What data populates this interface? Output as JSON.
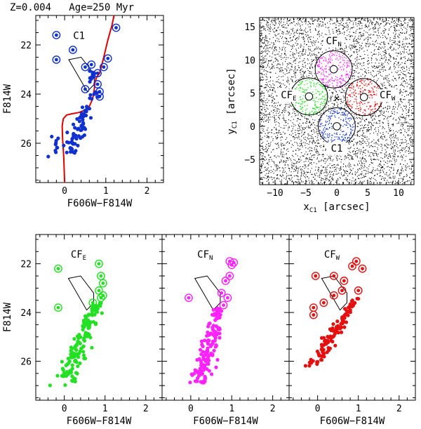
{
  "title": "Z=0.004   Age=250 Myr",
  "colors": {
    "C1": "#1030d0",
    "CF_E": "#22e022",
    "CF_N": "#ff22ff",
    "CF_W": "#e41010",
    "isochrone": "#e00000",
    "box": "#000000"
  },
  "chart_data": [
    {
      "id": "cmd_C1",
      "type": "scatter",
      "label": "C1",
      "xlabel": "F606W−F814W",
      "ylabel": "F814W",
      "xlim": [
        -0.7,
        2.4
      ],
      "ylim": [
        27.6,
        20.8
      ],
      "xticks": [
        "0",
        "1",
        "2"
      ],
      "yticks": [
        "22",
        "24",
        "26"
      ],
      "color_key": "C1",
      "circled": [
        [
          -0.2,
          21.6
        ],
        [
          0.2,
          22.2
        ],
        [
          -0.2,
          22.6
        ],
        [
          0.5,
          22.9
        ],
        [
          0.65,
          22.8
        ],
        [
          0.95,
          22.9
        ],
        [
          0.8,
          23.15
        ],
        [
          0.8,
          23.6
        ],
        [
          0.5,
          23.8
        ],
        [
          0.85,
          23.9
        ],
        [
          0.85,
          24.1
        ],
        [
          1.25,
          21.3
        ],
        [
          1.05,
          22.55
        ]
      ]
    },
    {
      "id": "cmd_CFE",
      "type": "scatter",
      "label": "CF",
      "label_sub": "E",
      "xlabel": "F606W−F814W",
      "ylabel": "F814W",
      "xlim": [
        -0.7,
        2.4
      ],
      "ylim": [
        27.6,
        20.8
      ],
      "xticks": [
        "0",
        "1",
        "2"
      ],
      "yticks": [
        "22",
        "24",
        "26"
      ],
      "color_key": "CF_E",
      "circled": [
        [
          -0.15,
          22.2
        ],
        [
          0.85,
          22.0
        ],
        [
          0.9,
          22.5
        ],
        [
          0.95,
          22.8
        ],
        [
          0.85,
          23.1
        ],
        [
          0.9,
          23.4
        ],
        [
          0.7,
          23.6
        ],
        [
          -0.15,
          23.8
        ],
        [
          0.95,
          23.3
        ]
      ]
    },
    {
      "id": "cmd_CFN",
      "type": "scatter",
      "label": "CF",
      "label_sub": "N",
      "xlabel": "F606W−F814W",
      "ylabel": "F814W",
      "xlim": [
        -0.7,
        2.4
      ],
      "ylim": [
        27.6,
        20.8
      ],
      "xticks": [
        "0",
        "1",
        "2"
      ],
      "yticks": [
        "22",
        "24",
        "26"
      ],
      "color_key": "CF_N",
      "circled": [
        [
          0.95,
          21.9
        ],
        [
          1.05,
          21.95
        ],
        [
          1.0,
          22.05
        ],
        [
          0.95,
          22.5
        ],
        [
          0.85,
          22.7
        ],
        [
          0.75,
          23.2
        ],
        [
          0.9,
          23.4
        ],
        [
          -0.05,
          23.4
        ],
        [
          0.8,
          23.7
        ]
      ]
    },
    {
      "id": "cmd_CFW",
      "type": "scatter",
      "label": "CF",
      "label_sub": "W",
      "xlabel": "F606W−F814W",
      "ylabel": "F814W",
      "xlim": [
        -0.7,
        2.4
      ],
      "ylim": [
        27.6,
        20.8
      ],
      "xticks": [
        "0",
        "1",
        "2"
      ],
      "yticks": [
        "22",
        "24",
        "26"
      ],
      "color_key": "CF_W",
      "circled": [
        [
          0.95,
          21.9
        ],
        [
          1.1,
          22.2
        ],
        [
          0.85,
          22.1
        ],
        [
          -0.05,
          22.5
        ],
        [
          0.4,
          22.5
        ],
        [
          0.65,
          22.7
        ],
        [
          0.6,
          23.1
        ],
        [
          0.4,
          23.3
        ],
        [
          0.15,
          23.6
        ],
        [
          -0.1,
          23.8
        ],
        [
          -0.1,
          24.1
        ],
        [
          1.0,
          23.1
        ]
      ]
    },
    {
      "id": "map",
      "type": "scatter",
      "xlabel": "x",
      "xlabel_sub": "C1",
      "xlabel_tail": " [arcsec]",
      "ylabel": "y",
      "ylabel_sub": "C1",
      "ylabel_tail": " [arcsec]",
      "xlim": [
        -12.5,
        12.5
      ],
      "ylim": [
        -8.8,
        16.4
      ],
      "xticks": [
        "−10",
        "−5",
        "0",
        "5",
        "10"
      ],
      "yticks": [
        "−5",
        "0",
        "5",
        "10",
        "15"
      ],
      "apertures": [
        {
          "name": "C1",
          "x": 0,
          "y": 0,
          "r_outer": 3,
          "r_inner": 0.6,
          "color_key": "C1"
        },
        {
          "name": "CF_E",
          "x": -4.5,
          "y": 4.5,
          "r_outer": 3,
          "r_inner": 0.6,
          "color_key": "CF_E"
        },
        {
          "name": "CF_N",
          "x": -0.5,
          "y": 8.6,
          "r_outer": 3,
          "r_inner": 0.6,
          "color_key": "CF_N"
        },
        {
          "name": "CF_W",
          "x": 4.4,
          "y": 4.4,
          "r_outer": 3,
          "r_inner": 0.6,
          "color_key": "CF_W"
        }
      ],
      "centre_marker": {
        "x": 0,
        "y": 4.4,
        "symbol": "×"
      },
      "aperture_labels": {
        "C1": {
          "text": "C1",
          "sub": ""
        },
        "CF_E": {
          "text": "CF",
          "sub": "E"
        },
        "CF_N": {
          "text": "CF",
          "sub": "N"
        },
        "CF_W": {
          "text": "CF",
          "sub": "W"
        }
      }
    }
  ],
  "isochrone": [
    [
      0.0,
      27.6
    ],
    [
      -0.02,
      26.6
    ],
    [
      -0.05,
      25.8
    ],
    [
      -0.06,
      25.3
    ],
    [
      -0.03,
      25.0
    ],
    [
      0.05,
      24.85
    ],
    [
      0.18,
      24.8
    ],
    [
      0.35,
      24.75
    ],
    [
      0.5,
      24.65
    ],
    [
      0.6,
      24.5
    ],
    [
      0.68,
      24.2
    ],
    [
      0.72,
      23.8
    ],
    [
      0.74,
      23.5
    ],
    [
      0.78,
      23.3
    ],
    [
      0.85,
      23.15
    ],
    [
      0.95,
      22.5
    ],
    [
      1.05,
      21.8
    ],
    [
      1.15,
      21.2
    ],
    [
      1.2,
      20.8
    ]
  ],
  "selection_box": [
    [
      0.1,
      22.6
    ],
    [
      0.4,
      22.5
    ],
    [
      0.72,
      23.2
    ],
    [
      0.72,
      23.6
    ],
    [
      0.55,
      23.9
    ]
  ]
}
